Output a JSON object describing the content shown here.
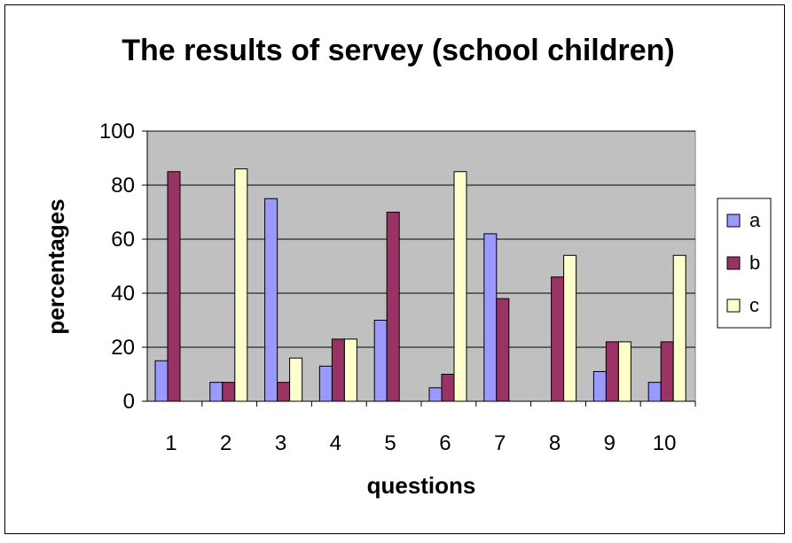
{
  "chart_data": {
    "type": "bar",
    "title": "The results of servey (school children)",
    "xlabel": "questions",
    "ylabel": "percentages",
    "categories": [
      "1",
      "2",
      "3",
      "4",
      "5",
      "6",
      "7",
      "8",
      "9",
      "10"
    ],
    "series": [
      {
        "name": "a",
        "color": "#9999ff",
        "values": [
          15,
          7,
          75,
          13,
          30,
          5,
          62,
          0,
          11,
          7
        ]
      },
      {
        "name": "b",
        "color": "#993366",
        "values": [
          85,
          7,
          7,
          23,
          70,
          10,
          38,
          46,
          22,
          22
        ]
      },
      {
        "name": "c",
        "color": "#ffffcc",
        "values": [
          0,
          86,
          16,
          23,
          0,
          85,
          0,
          54,
          22,
          54
        ]
      }
    ],
    "ylim": [
      0,
      100
    ],
    "yticks": [
      "0",
      "20",
      "40",
      "60",
      "80",
      "100"
    ],
    "grid": true,
    "plot_background": "#c0c0c0",
    "legend_position": "right"
  }
}
